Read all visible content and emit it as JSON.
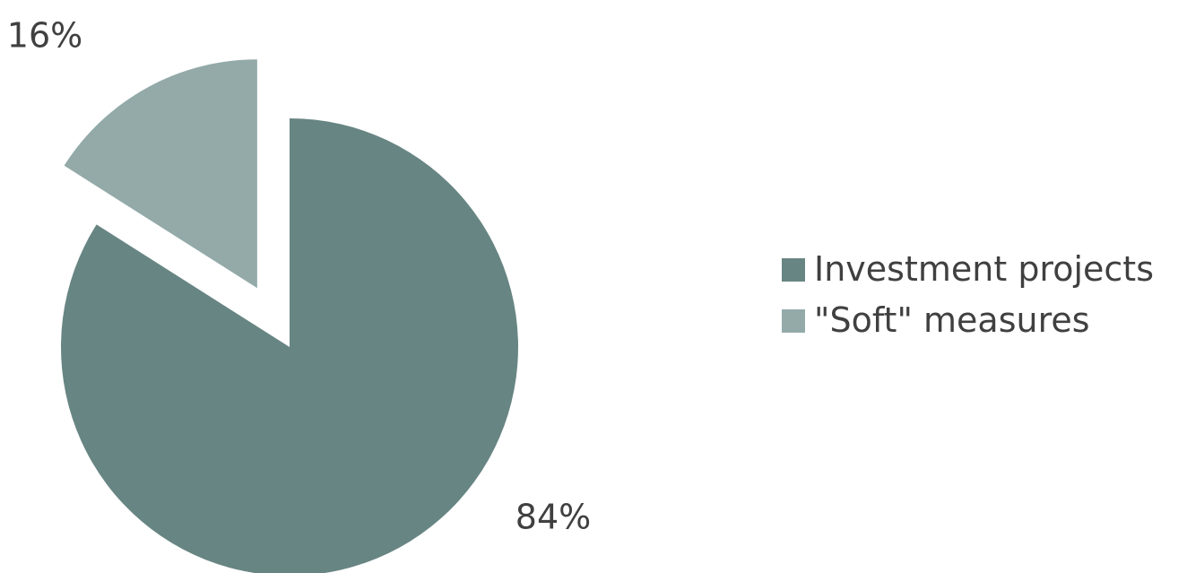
{
  "chart_data": {
    "type": "pie",
    "title": "",
    "slices": [
      {
        "label": "Investment projects",
        "value": 84,
        "display": "84%",
        "color": "#678583",
        "exploded": false
      },
      {
        "label": "\"Soft\" measures",
        "value": 16,
        "display": "16%",
        "color": "#93aaa9",
        "exploded": true
      }
    ],
    "legend_position": "right"
  },
  "legend": {
    "items": [
      {
        "label": "Investment projects",
        "color": "#678583"
      },
      {
        "label": "\"Soft\" measures",
        "color": "#93aaa9"
      }
    ]
  }
}
